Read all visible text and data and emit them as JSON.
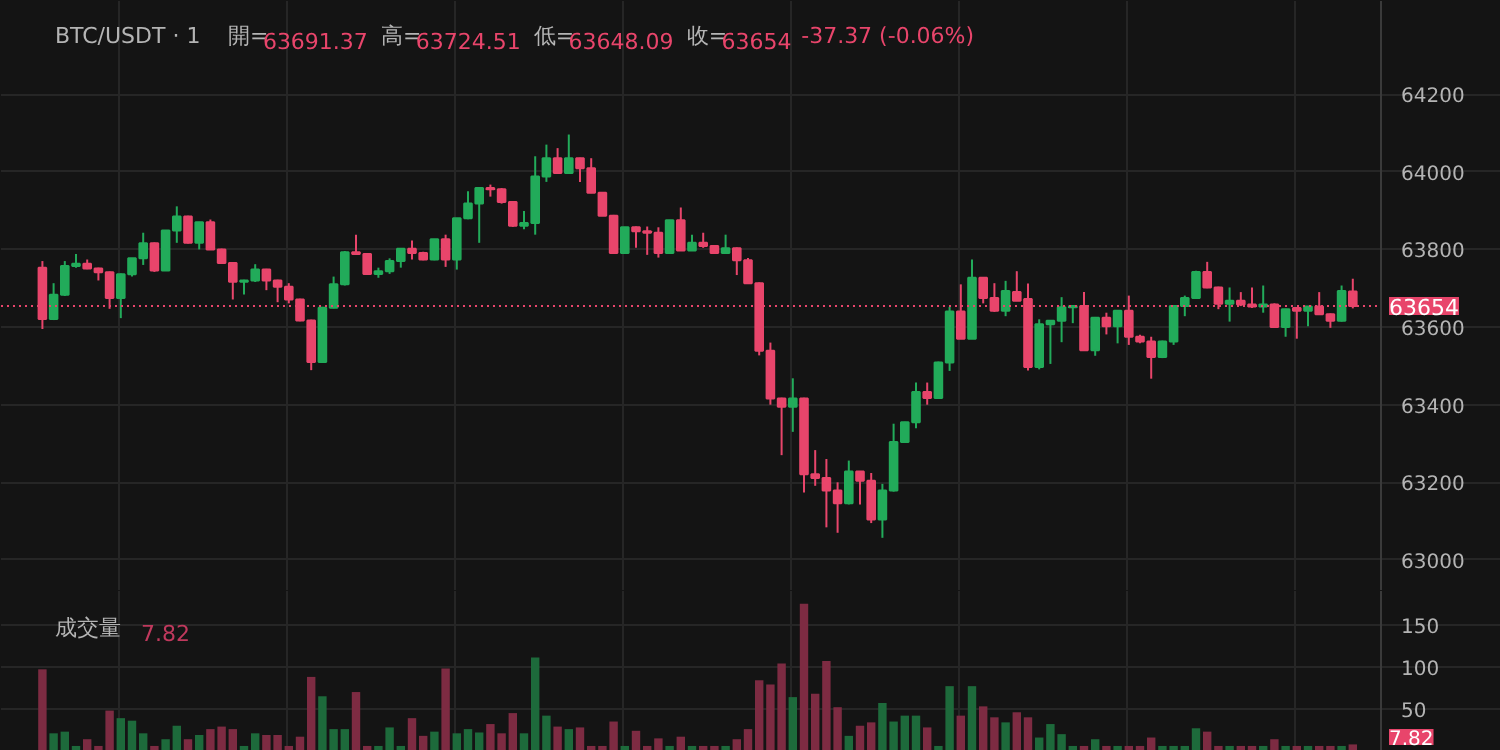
{
  "chart_data": [
    {
      "type": "candlestick",
      "title": "BTC/USDT · 1",
      "annotations": [
        "開=63691.37",
        "高=63724.51",
        "低=63648.09",
        "收=63654",
        "-37.37 (-0.06%)"
      ],
      "categories": [
        null,
        null,
        null,
        null,
        null,
        null,
        null,
        null,
        null,
        null,
        null,
        null,
        null,
        null,
        null,
        null,
        null,
        null,
        null,
        null,
        null,
        null,
        null,
        null,
        null,
        null,
        null,
        null,
        null,
        null,
        null,
        null,
        null,
        null,
        null,
        null,
        null,
        null,
        null,
        null,
        null,
        null,
        null,
        null,
        null,
        null,
        null,
        null,
        null,
        null,
        null,
        null,
        null,
        null,
        null,
        null,
        null,
        null,
        null,
        null,
        null,
        null,
        null,
        null,
        null,
        null,
        null,
        null,
        null,
        null,
        null,
        null,
        null,
        null,
        null,
        null,
        null,
        null,
        null,
        null,
        null,
        null,
        null,
        null,
        null,
        null,
        null,
        null,
        null,
        null,
        null,
        null,
        null,
        null,
        null,
        null,
        null,
        null,
        null,
        null,
        null,
        null,
        null,
        null,
        null,
        null,
        null,
        null,
        null,
        null,
        null,
        null,
        null,
        null,
        null,
        null,
        null,
        null
      ],
      "ohlc": [
        [
          63753,
          63770,
          63595,
          63621
        ],
        [
          63621,
          63713,
          63618,
          63683
        ],
        [
          63683,
          63770,
          63680,
          63757
        ],
        [
          63757,
          63788,
          63753,
          63763
        ],
        [
          63763,
          63774,
          63749,
          63751
        ],
        [
          63751,
          63753,
          63720,
          63741
        ],
        [
          63741,
          63743,
          63647,
          63675
        ],
        [
          63675,
          63738,
          63623,
          63736
        ],
        [
          63736,
          63778,
          63730,
          63777
        ],
        [
          63777,
          63843,
          63760,
          63816
        ],
        [
          63816,
          63818,
          63742,
          63746
        ],
        [
          63746,
          63850,
          63745,
          63849
        ],
        [
          63849,
          63911,
          63817,
          63885
        ],
        [
          63885,
          63887,
          63815,
          63817
        ],
        [
          63817,
          63871,
          63800,
          63870
        ],
        [
          63870,
          63877,
          63799,
          63800
        ],
        [
          63800,
          63802,
          63763,
          63765
        ],
        [
          63765,
          63766,
          63671,
          63717
        ],
        [
          63717,
          63722,
          63684,
          63720
        ],
        [
          63720,
          63762,
          63716,
          63748
        ],
        [
          63748,
          63750,
          63695,
          63720
        ],
        [
          63720,
          63722,
          63664,
          63704
        ],
        [
          63704,
          63713,
          63661,
          63671
        ],
        [
          63671,
          63673,
          63615,
          63617
        ],
        [
          63617,
          63619,
          63489,
          63510
        ],
        [
          63510,
          63652,
          63508,
          63650
        ],
        [
          63650,
          63730,
          63648,
          63710
        ],
        [
          63710,
          63796,
          63707,
          63793
        ],
        [
          63793,
          63838,
          63786,
          63788
        ],
        [
          63788,
          63790,
          63735,
          63737
        ],
        [
          63737,
          63753,
          63727,
          63744
        ],
        [
          63744,
          63777,
          63737,
          63770
        ],
        [
          63770,
          63803,
          63753,
          63802
        ],
        [
          63802,
          63823,
          63774,
          63791
        ],
        [
          63791,
          63794,
          63772,
          63774
        ],
        [
          63774,
          63827,
          63772,
          63826
        ],
        [
          63826,
          63838,
          63755,
          63774
        ],
        [
          63774,
          63881,
          63748,
          63880
        ],
        [
          63880,
          63950,
          63878,
          63918
        ],
        [
          63918,
          63960,
          63817,
          63958
        ],
        [
          63958,
          63967,
          63936,
          63955
        ],
        [
          63955,
          63958,
          63918,
          63922
        ],
        [
          63922,
          63924,
          63858,
          63861
        ],
        [
          63861,
          63899,
          63852,
          63868
        ],
        [
          63868,
          64040,
          63838,
          63988
        ],
        [
          63988,
          64070,
          63974,
          64035
        ],
        [
          64035,
          64061,
          63996,
          63997
        ],
        [
          63997,
          64096,
          63995,
          64035
        ],
        [
          64035,
          64036,
          63974,
          64009
        ],
        [
          64009,
          64035,
          63945,
          63946
        ],
        [
          63946,
          63948,
          63886,
          63887
        ],
        [
          63887,
          63889,
          63789,
          63791
        ],
        [
          63791,
          63858,
          63789,
          63857
        ],
        [
          63857,
          63859,
          63804,
          63847
        ],
        [
          63847,
          63859,
          63786,
          63843
        ],
        [
          63843,
          63857,
          63779,
          63791
        ],
        [
          63791,
          63876,
          63789,
          63875
        ],
        [
          63875,
          63908,
          63796,
          63797
        ],
        [
          63797,
          63838,
          63796,
          63817
        ],
        [
          63817,
          63843,
          63804,
          63809
        ],
        [
          63809,
          63811,
          63789,
          63791
        ],
        [
          63791,
          63838,
          63790,
          63803
        ],
        [
          63803,
          63805,
          63734,
          63772
        ],
        [
          63772,
          63778,
          63712,
          63713
        ],
        [
          63713,
          63715,
          63527,
          63539
        ],
        [
          63539,
          63560,
          63400,
          63416
        ],
        [
          63416,
          63418,
          63270,
          63395
        ],
        [
          63395,
          63468,
          63330,
          63416
        ],
        [
          63416,
          63418,
          63174,
          63221
        ],
        [
          63221,
          63283,
          63191,
          63211
        ],
        [
          63211,
          63260,
          63084,
          63179
        ],
        [
          63179,
          63200,
          63070,
          63146
        ],
        [
          63146,
          63256,
          63143,
          63228
        ],
        [
          63228,
          63229,
          63143,
          63204
        ],
        [
          63204,
          63224,
          63095,
          63104
        ],
        [
          63104,
          63196,
          63057,
          63179
        ],
        [
          63179,
          63351,
          63176,
          63304
        ],
        [
          63304,
          63356,
          63303,
          63355
        ],
        [
          63355,
          63457,
          63339,
          63433
        ],
        [
          63433,
          63457,
          63400,
          63417
        ],
        [
          63417,
          63511,
          63416,
          63509
        ],
        [
          63509,
          63652,
          63487,
          63640
        ],
        [
          63640,
          63710,
          63569,
          63570
        ],
        [
          63570,
          63774,
          63569,
          63727
        ],
        [
          63727,
          63728,
          63661,
          63675
        ],
        [
          63675,
          63713,
          63639,
          63642
        ],
        [
          63642,
          63719,
          63628,
          63693
        ],
        [
          63690,
          63744,
          63667,
          63668
        ],
        [
          63672,
          63712,
          63488,
          63497
        ],
        [
          63497,
          63620,
          63491,
          63607
        ],
        [
          63607,
          63617,
          63505,
          63616
        ],
        [
          63616,
          63677,
          63561,
          63651
        ],
        [
          63651,
          63656,
          63610,
          63654
        ],
        [
          63654,
          63690,
          63538,
          63540
        ],
        [
          63540,
          63626,
          63526,
          63624
        ],
        [
          63624,
          63637,
          63581,
          63602
        ],
        [
          63602,
          63643,
          63558,
          63642
        ],
        [
          63642,
          63681,
          63554,
          63575
        ],
        [
          63575,
          63580,
          63558,
          63563
        ],
        [
          63563,
          63575,
          63467,
          63523
        ],
        [
          63523,
          63565,
          63520,
          63563
        ],
        [
          63563,
          63656,
          63554,
          63654
        ],
        [
          63654,
          63681,
          63628,
          63675
        ],
        [
          63675,
          63745,
          63673,
          63742
        ],
        [
          63742,
          63768,
          63700,
          63702
        ],
        [
          63702,
          63704,
          63646,
          63660
        ],
        [
          63660,
          63702,
          63614,
          63668
        ],
        [
          63668,
          63690,
          63654,
          63658
        ],
        [
          63658,
          63702,
          63649,
          63653
        ],
        [
          63653,
          63707,
          63637,
          63658
        ],
        [
          63658,
          63661,
          63598,
          63600
        ],
        [
          63600,
          63647,
          63575,
          63646
        ],
        [
          63649,
          63650,
          63570,
          63642
        ],
        [
          63642,
          63654,
          63602,
          63653
        ],
        [
          63653,
          63690,
          63632,
          63633
        ],
        [
          63633,
          63635,
          63598,
          63616
        ],
        [
          63616,
          63707,
          63614,
          63693
        ],
        [
          63691.37,
          63724.51,
          63648.09,
          63654
        ]
      ],
      "colors": [
        "#e8456b",
        "#22ab5a",
        "#22ab5a",
        "#22ab5a",
        "#e8456b",
        "#e8456b",
        "#e8456b",
        "#22ab5a",
        "#22ab5a",
        "#22ab5a",
        "#e8456b",
        "#22ab5a",
        "#22ab5a",
        "#e8456b",
        "#22ab5a",
        "#e8456b",
        "#e8456b",
        "#e8456b",
        "#22ab5a",
        "#22ab5a",
        "#e8456b",
        "#e8456b",
        "#e8456b",
        "#e8456b",
        "#e8456b",
        "#22ab5a",
        "#22ab5a",
        "#22ab5a",
        "#e8456b",
        "#e8456b",
        "#22ab5a",
        "#22ab5a",
        "#22ab5a",
        "#e8456b",
        "#e8456b",
        "#22ab5a",
        "#e8456b",
        "#22ab5a",
        "#22ab5a",
        "#22ab5a",
        "#e8456b",
        "#e8456b",
        "#e8456b",
        "#22ab5a",
        "#22ab5a",
        "#22ab5a",
        "#e8456b",
        "#22ab5a",
        "#e8456b",
        "#e8456b",
        "#e8456b",
        "#e8456b",
        "#22ab5a",
        "#e8456b",
        "#e8456b",
        "#e8456b",
        "#22ab5a",
        "#e8456b",
        "#22ab5a",
        "#e8456b",
        "#e8456b",
        "#22ab5a",
        "#e8456b",
        "#e8456b",
        "#e8456b",
        "#e8456b",
        "#e8456b",
        "#22ab5a",
        "#e8456b",
        "#e8456b",
        "#e8456b",
        "#e8456b",
        "#22ab5a",
        "#e8456b",
        "#e8456b",
        "#22ab5a",
        "#22ab5a",
        "#22ab5a",
        "#22ab5a",
        "#e8456b",
        "#22ab5a",
        "#22ab5a",
        "#e8456b",
        "#22ab5a",
        "#e8456b",
        "#e8456b",
        "#22ab5a",
        "#e8456b",
        "#e8456b",
        "#22ab5a",
        "#22ab5a",
        "#22ab5a",
        "#22ab5a",
        "#e8456b",
        "#22ab5a",
        "#e8456b",
        "#22ab5a",
        "#e8456b",
        "#e8456b",
        "#e8456b",
        "#22ab5a",
        "#22ab5a",
        "#22ab5a",
        "#22ab5a",
        "#e8456b",
        "#e8456b",
        "#22ab5a",
        "#e8456b",
        "#e8456b",
        "#22ab5a",
        "#e8456b",
        "#22ab5a",
        "#e8456b",
        "#22ab5a",
        "#e8456b",
        "#e8456b",
        "#22ab5a",
        "#e8456b"
      ],
      "ylim": [
        62920,
        64440
      ],
      "yticks": [
        63000,
        63200,
        63400,
        63600,
        63800,
        64000,
        64200
      ],
      "ref_lines": [
        {
          "axis": "y",
          "value": 63654,
          "label": "63654",
          "color": "#e8456b",
          "line_style": "dotted"
        }
      ],
      "grid": true,
      "tick_labels": "y"
    },
    {
      "type": "bar",
      "title": "成交量",
      "annotations": [
        "7.82",
        "7.82"
      ],
      "categories": [
        null,
        null,
        null,
        null,
        null,
        null,
        null,
        null,
        null,
        null,
        null,
        null,
        null,
        null,
        null,
        null,
        null,
        null,
        null,
        null,
        null,
        null,
        null,
        null,
        null,
        null,
        null,
        null,
        null,
        null,
        null,
        null,
        null,
        null,
        null,
        null,
        null,
        null,
        null,
        null,
        null,
        null,
        null,
        null,
        null,
        null,
        null,
        null,
        null,
        null,
        null,
        null,
        null,
        null,
        null,
        null,
        null,
        null,
        null,
        null,
        null,
        null,
        null,
        null,
        null,
        null,
        null,
        null,
        null,
        null,
        null,
        null,
        null,
        null,
        null,
        null,
        null,
        null,
        null,
        null,
        null,
        null,
        null,
        null,
        null,
        null,
        null,
        null,
        null,
        null,
        null,
        null,
        null,
        null,
        null,
        null,
        null,
        null,
        null,
        null,
        null,
        null,
        null,
        null,
        null,
        null,
        null,
        null,
        null,
        null,
        null,
        null,
        null,
        null,
        null,
        null,
        null,
        null
      ],
      "values": [
        97,
        21,
        23,
        6,
        14,
        6,
        48,
        39,
        36,
        21,
        6,
        14,
        30,
        14,
        19,
        26,
        29,
        26,
        6,
        21,
        19,
        19,
        6,
        17,
        88,
        65,
        26,
        26,
        70,
        6,
        6,
        28,
        6,
        39,
        18,
        23,
        98,
        21,
        26,
        22,
        32,
        21,
        45,
        21,
        111,
        42,
        29,
        26,
        28,
        6,
        6,
        35,
        6,
        24,
        6,
        15,
        6,
        17,
        6,
        6,
        6,
        6,
        14,
        26,
        84,
        79,
        104,
        64,
        175,
        68,
        107,
        52,
        18,
        30,
        34,
        57,
        35,
        42,
        42,
        28,
        6,
        77,
        42,
        77,
        53,
        40,
        34,
        46,
        40,
        16,
        32,
        20,
        6,
        6,
        14,
        6,
        6,
        6,
        6,
        16,
        6,
        6,
        6,
        27,
        23,
        6,
        6,
        6,
        6,
        6,
        14,
        6,
        6,
        6,
        6,
        6,
        6,
        7.82
      ],
      "colors": [
        "#7d2b42",
        "#1d6a3b",
        "#1d6a3b",
        "#1d6a3b",
        "#7d2b42",
        "#7d2b42",
        "#7d2b42",
        "#1d6a3b",
        "#1d6a3b",
        "#1d6a3b",
        "#7d2b42",
        "#1d6a3b",
        "#1d6a3b",
        "#7d2b42",
        "#1d6a3b",
        "#7d2b42",
        "#7d2b42",
        "#7d2b42",
        "#1d6a3b",
        "#1d6a3b",
        "#7d2b42",
        "#7d2b42",
        "#7d2b42",
        "#7d2b42",
        "#7d2b42",
        "#1d6a3b",
        "#1d6a3b",
        "#1d6a3b",
        "#7d2b42",
        "#7d2b42",
        "#1d6a3b",
        "#1d6a3b",
        "#1d6a3b",
        "#7d2b42",
        "#7d2b42",
        "#1d6a3b",
        "#7d2b42",
        "#1d6a3b",
        "#1d6a3b",
        "#1d6a3b",
        "#7d2b42",
        "#7d2b42",
        "#7d2b42",
        "#1d6a3b",
        "#1d6a3b",
        "#1d6a3b",
        "#7d2b42",
        "#1d6a3b",
        "#7d2b42",
        "#7d2b42",
        "#7d2b42",
        "#7d2b42",
        "#1d6a3b",
        "#7d2b42",
        "#7d2b42",
        "#7d2b42",
        "#1d6a3b",
        "#7d2b42",
        "#1d6a3b",
        "#7d2b42",
        "#7d2b42",
        "#1d6a3b",
        "#7d2b42",
        "#7d2b42",
        "#7d2b42",
        "#7d2b42",
        "#7d2b42",
        "#1d6a3b",
        "#7d2b42",
        "#7d2b42",
        "#7d2b42",
        "#7d2b42",
        "#1d6a3b",
        "#7d2b42",
        "#7d2b42",
        "#1d6a3b",
        "#1d6a3b",
        "#1d6a3b",
        "#1d6a3b",
        "#7d2b42",
        "#1d6a3b",
        "#1d6a3b",
        "#7d2b42",
        "#1d6a3b",
        "#7d2b42",
        "#7d2b42",
        "#1d6a3b",
        "#7d2b42",
        "#7d2b42",
        "#1d6a3b",
        "#1d6a3b",
        "#1d6a3b",
        "#1d6a3b",
        "#7d2b42",
        "#1d6a3b",
        "#7d2b42",
        "#1d6a3b",
        "#7d2b42",
        "#7d2b42",
        "#7d2b42",
        "#1d6a3b",
        "#1d6a3b",
        "#1d6a3b",
        "#1d6a3b",
        "#7d2b42",
        "#7d2b42",
        "#1d6a3b",
        "#7d2b42",
        "#7d2b42",
        "#1d6a3b",
        "#7d2b42",
        "#1d6a3b",
        "#7d2b42",
        "#1d6a3b",
        "#7d2b42",
        "#7d2b42",
        "#1d6a3b",
        "#7d2b42"
      ],
      "ylim": [
        0,
        190
      ],
      "yticks": [
        50,
        100,
        150
      ],
      "grid": true,
      "tick_labels": "y"
    }
  ]
}
